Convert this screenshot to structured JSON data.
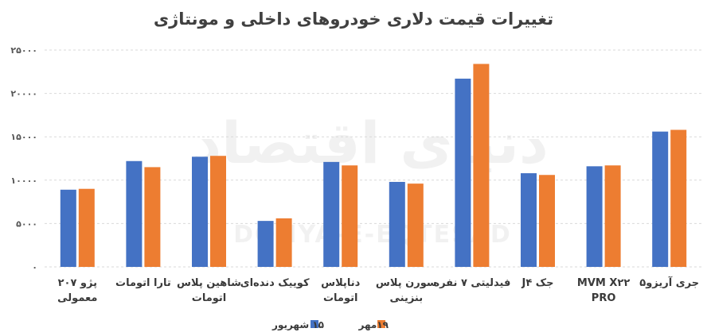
{
  "chart_data": {
    "type": "bar",
    "title": "تغییرات قیمت دلاری خودروهای داخلی و مونتاژی",
    "categories": [
      [
        "پژو ۲۰۷",
        "معمولی"
      ],
      [
        "تارا اتومات"
      ],
      [
        "شاهین پلاس",
        "اتومات"
      ],
      [
        "کوییک دنده‌ای"
      ],
      [
        "دناپلاس",
        "اتومات"
      ],
      [
        "سورن پلاس",
        "بنزینی"
      ],
      [
        "فیدلیتی ۷ نفره"
      ],
      [
        "جک J۴"
      ],
      [
        "MVM X۲۲",
        "PRO"
      ],
      [
        "جری آریزو۵"
      ]
    ],
    "series": [
      {
        "name": "۱۵ شهریور",
        "color": "#4472C4",
        "values": [
          8900,
          12200,
          12700,
          5300,
          12100,
          9800,
          21700,
          10800,
          11600,
          15600
        ]
      },
      {
        "name": "۱۹مهر",
        "color": "#ED7D31",
        "values": [
          9000,
          11500,
          12800,
          5600,
          11700,
          9600,
          23400,
          10600,
          11700,
          15800
        ]
      }
    ],
    "yticks": [
      "۰",
      "۵۰۰۰",
      "۱۰۰۰۰",
      "۱۵۰۰۰",
      "۲۰۰۰۰",
      "۲۵۰۰۰"
    ],
    "ylim": [
      0,
      25000
    ],
    "grid": true,
    "legend_position": "bottom"
  },
  "watermark": {
    "logo_text": "دنیای اقتصاد",
    "latin_text": "DONYA-E-EQTESAD"
  }
}
